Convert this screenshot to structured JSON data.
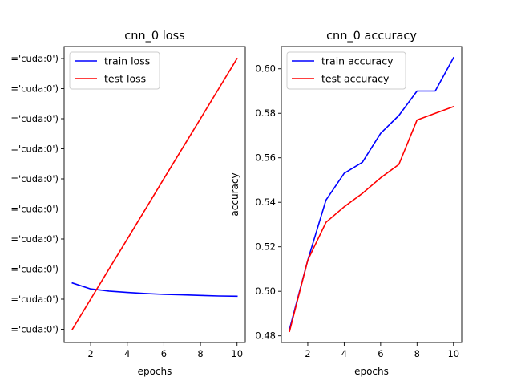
{
  "chart_data": [
    {
      "type": "line",
      "title": "cnn_0 loss",
      "xlabel": "epochs",
      "ylabel": "",
      "x": [
        1,
        2,
        3,
        4,
        5,
        6,
        7,
        8,
        9,
        10
      ],
      "xticks": [
        "2",
        "4",
        "6",
        "8",
        "10"
      ],
      "yticks": [
        "='cuda:0')",
        "='cuda:0')",
        "='cuda:0')",
        "='cuda:0')",
        "='cuda:0')",
        "='cuda:0')",
        "='cuda:0')",
        "='cuda:0')",
        "='cuda:0')",
        "='cuda:0')"
      ],
      "ylim": [
        0,
        1
      ],
      "series": [
        {
          "name": "train loss",
          "color": "#0000ff",
          "values": [
            0.171,
            0.149,
            0.141,
            0.136,
            0.132,
            0.129,
            0.127,
            0.125,
            0.123,
            0.122
          ]
        },
        {
          "name": "test loss",
          "color": "#ff0000",
          "values": [
            0.0,
            0.111,
            0.222,
            0.333,
            0.444,
            0.556,
            0.667,
            0.778,
            0.889,
            1.0
          ]
        }
      ],
      "legend": "top-left"
    },
    {
      "type": "line",
      "title": "cnn_0 accuracy",
      "xlabel": "epochs",
      "ylabel": "accuracy",
      "x": [
        1,
        2,
        3,
        4,
        5,
        6,
        7,
        8,
        9,
        10
      ],
      "xticks": [
        "2",
        "4",
        "6",
        "8",
        "10"
      ],
      "yticks": [
        "0.48",
        "0.50",
        "0.52",
        "0.54",
        "0.56",
        "0.58",
        "0.60"
      ],
      "ylim": [
        0.477,
        0.61
      ],
      "series": [
        {
          "name": "train accuracy",
          "color": "#0000ff",
          "values": [
            0.483,
            0.514,
            0.541,
            0.553,
            0.558,
            0.571,
            0.579,
            0.59,
            0.59,
            0.605
          ]
        },
        {
          "name": "test accuracy",
          "color": "#ff0000",
          "values": [
            0.482,
            0.514,
            0.531,
            0.538,
            0.544,
            0.551,
            0.557,
            0.577,
            0.58,
            0.583
          ]
        }
      ],
      "legend": "top-left"
    }
  ]
}
